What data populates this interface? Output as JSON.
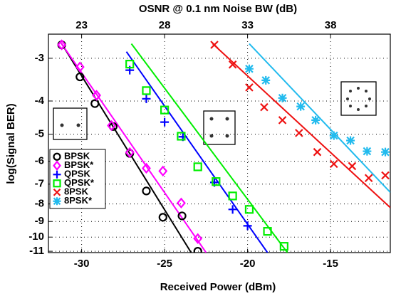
{
  "chart_data": {
    "type": "scatter",
    "x2label": "OSNR @ 0.1 nm Noise BW (dB)",
    "xlabel": "Received Power (dBm)",
    "ylabel": "log(Signal BER)",
    "xlim": [
      -32,
      -11.4
    ],
    "xticks": [
      -30,
      -25,
      -20,
      -15
    ],
    "x2lim": [
      21,
      41.6
    ],
    "x2ticks": [
      23,
      28,
      33,
      38
    ],
    "ylim": [
      -11.1,
      -2.55
    ],
    "yticks": [
      -3,
      -4,
      -5,
      -6,
      -7,
      -8,
      -9,
      -10,
      -11
    ],
    "yscale": "log-neg",
    "grid": true,
    "legend": "lower left",
    "series": [
      {
        "name": "BPSK",
        "color": "#000000",
        "marker": "circle",
        "x": [
          -31.2,
          -30.1,
          -29.2,
          -28.1,
          -27.1,
          -26.1,
          -25.1,
          -23.95,
          -23.0
        ],
        "values": [
          -2.74,
          -3.4,
          -4.07,
          -4.75,
          -5.69,
          -7.33,
          -8.75,
          -8.67,
          -11.0
        ],
        "fit_x": [
          -31.2,
          -23.4
        ],
        "fit_y": [
          -2.72,
          -11.1
        ]
      },
      {
        "name": "BPSK*",
        "color": "#ff00ff",
        "marker": "diamond",
        "x": [
          -31.2,
          -30.1,
          -29.1,
          -28.2,
          -27.1,
          -26.1,
          -25.1,
          -24.0,
          -23.0
        ],
        "values": [
          -2.74,
          -3.18,
          -3.85,
          -4.72,
          -5.66,
          -6.29,
          -6.41,
          -7.95,
          -10.1
        ],
        "fit_x": [
          -31.3,
          -22.5
        ],
        "fit_y": [
          -2.68,
          -11.1
        ]
      },
      {
        "name": "QPSK",
        "color": "#0000ff",
        "marker": "plus",
        "x": [
          -27.1,
          -26.1,
          -25.0,
          -23.9,
          -22.0,
          -20.9,
          -20.0
        ],
        "values": [
          -3.25,
          -3.94,
          -4.61,
          -5.09,
          -6.92,
          -8.3,
          -9.27
        ],
        "fit_x": [
          -27.3,
          -18.8
        ],
        "fit_y": [
          -2.87,
          -11.1
        ]
      },
      {
        "name": "QPSK*",
        "color": "#00ee00",
        "marker": "square",
        "x": [
          -27.1,
          -26.1,
          -25.0,
          -24.0,
          -23.0,
          -21.9,
          -20.9,
          -19.9,
          -18.8,
          -17.8
        ],
        "values": [
          -3.12,
          -3.73,
          -4.25,
          -5.07,
          -6.23,
          -6.88,
          -7.58,
          -8.3,
          -9.62,
          -10.64
        ],
        "fit_x": [
          -27.0,
          -17.6
        ],
        "fit_y": [
          -2.72,
          -11.1
        ]
      },
      {
        "name": "8PSK",
        "color": "#ee1111",
        "marker": "x",
        "x": [
          -22.0,
          -20.9,
          -19.9,
          -19.0,
          -17.9,
          -16.9,
          -15.8,
          -14.8,
          -13.7,
          -12.7,
          -11.7
        ],
        "values": [
          -2.74,
          -3.13,
          -3.65,
          -4.17,
          -4.55,
          -4.96,
          -5.64,
          -6.11,
          -6.2,
          -6.72,
          -6.6
        ],
        "fit_x": [
          -22.1,
          -11.4
        ],
        "fit_y": [
          -2.72,
          -8.2
        ]
      },
      {
        "name": "8PSK*",
        "color": "#22bbee",
        "marker": "asterisk",
        "x": [
          -19.9,
          -18.9,
          -17.9,
          -16.8,
          -15.9,
          -14.8,
          -13.8,
          -12.8,
          -11.7
        ],
        "values": [
          -3.22,
          -3.48,
          -3.92,
          -4.15,
          -4.55,
          -5.05,
          -5.22,
          -5.61,
          -5.64
        ],
        "fit_x": [
          -19.9,
          -11.4
        ],
        "fit_y": [
          -2.72,
          -7.4
        ]
      }
    ]
  }
}
